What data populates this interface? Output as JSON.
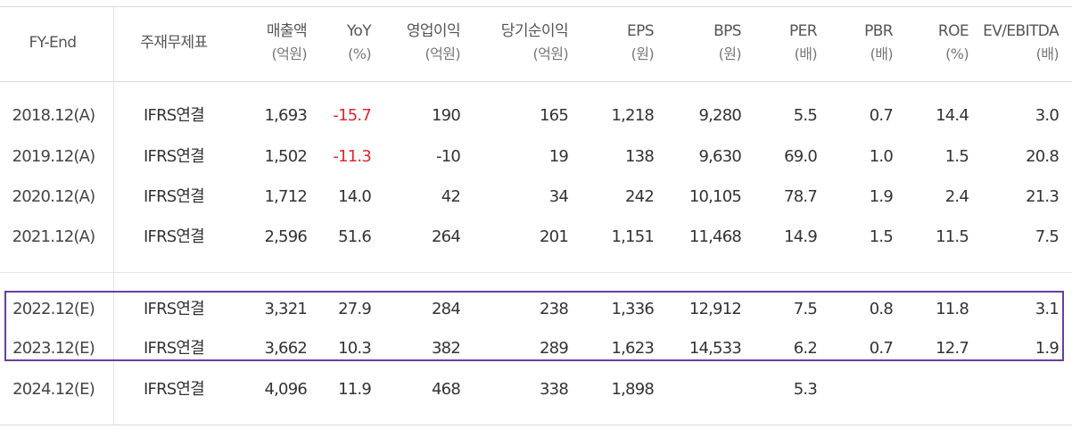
{
  "table": {
    "headers": {
      "fy_end": "FY-End",
      "type": "주재무제표",
      "revenue": {
        "label": "매출액",
        "unit": "(억원)"
      },
      "yoy": {
        "label": "YoY",
        "unit": "(%)"
      },
      "op_income": {
        "label": "영업이익",
        "unit": "(억원)"
      },
      "net_income": {
        "label": "당기순이익",
        "unit": "(억원)"
      },
      "eps": {
        "label": "EPS",
        "unit": "(원)"
      },
      "bps": {
        "label": "BPS",
        "unit": "(원)"
      },
      "per": {
        "label": "PER",
        "unit": "(배)"
      },
      "pbr": {
        "label": "PBR",
        "unit": "(배)"
      },
      "roe": {
        "label": "ROE",
        "unit": "(%)"
      },
      "ev_ebitda": {
        "label": "EV/EBITDA",
        "unit": "(배)"
      }
    },
    "rows": [
      {
        "fy_end": "2018.12(A)",
        "type": "IFRS연결",
        "revenue": "1,693",
        "yoy": "-15.7",
        "op_income": "190",
        "net_income": "165",
        "eps": "1,218",
        "bps": "9,280",
        "per": "5.5",
        "pbr": "0.7",
        "roe": "14.4",
        "ev_ebitda": "3.0"
      },
      {
        "fy_end": "2019.12(A)",
        "type": "IFRS연결",
        "revenue": "1,502",
        "yoy": "-11.3",
        "op_income": "-10",
        "net_income": "19",
        "eps": "138",
        "bps": "9,630",
        "per": "69.0",
        "pbr": "1.0",
        "roe": "1.5",
        "ev_ebitda": "20.8"
      },
      {
        "fy_end": "2020.12(A)",
        "type": "IFRS연결",
        "revenue": "1,712",
        "yoy": "14.0",
        "op_income": "42",
        "net_income": "34",
        "eps": "242",
        "bps": "10,105",
        "per": "78.7",
        "pbr": "1.9",
        "roe": "2.4",
        "ev_ebitda": "21.3"
      },
      {
        "fy_end": "2021.12(A)",
        "type": "IFRS연결",
        "revenue": "2,596",
        "yoy": "51.6",
        "op_income": "264",
        "net_income": "201",
        "eps": "1,151",
        "bps": "11,468",
        "per": "14.9",
        "pbr": "1.5",
        "roe": "11.5",
        "ev_ebitda": "7.5"
      },
      {
        "fy_end": "2022.12(E)",
        "type": "IFRS연결",
        "revenue": "3,321",
        "yoy": "27.9",
        "op_income": "284",
        "net_income": "238",
        "eps": "1,336",
        "bps": "12,912",
        "per": "7.5",
        "pbr": "0.8",
        "roe": "11.8",
        "ev_ebitda": "3.1"
      },
      {
        "fy_end": "2023.12(E)",
        "type": "IFRS연결",
        "revenue": "3,662",
        "yoy": "10.3",
        "op_income": "382",
        "net_income": "289",
        "eps": "1,623",
        "bps": "14,533",
        "per": "6.2",
        "pbr": "0.7",
        "roe": "12.7",
        "ev_ebitda": "1.9"
      },
      {
        "fy_end": "2024.12(E)",
        "type": "IFRS연결",
        "revenue": "4,096",
        "yoy": "11.9",
        "op_income": "468",
        "net_income": "338",
        "eps": "1,898",
        "bps": "",
        "per": "5.3",
        "pbr": "",
        "roe": "",
        "ev_ebitda": ""
      }
    ],
    "colors": {
      "negative": "#e0262e",
      "highlight_border": "#6a3ea1",
      "rule": "#d9d9d9"
    }
  }
}
